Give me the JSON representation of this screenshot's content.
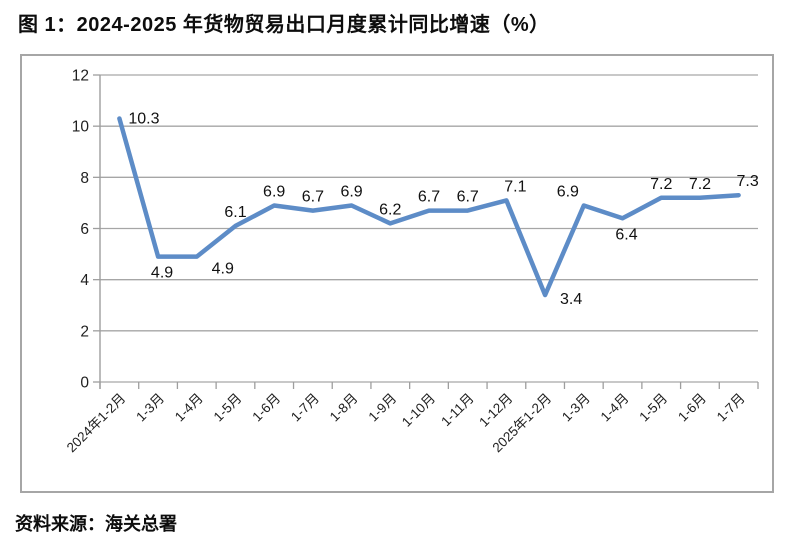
{
  "page": {
    "title": "图 1：2024-2025 年货物贸易出口月度累计同比增速（%）",
    "source_note": "资料来源：海关总署"
  },
  "chart_data": {
    "type": "line",
    "title": "图 1：2024-2025 年货物贸易出口月度累计同比增速（%）",
    "categories": [
      "2024年1-2月",
      "1-3月",
      "1-4月",
      "1-5月",
      "1-6月",
      "1-7月",
      "1-8月",
      "1-9月",
      "1-10月",
      "1-11月",
      "1-12月",
      "2025年1-2月",
      "1-3月",
      "1-4月",
      "1-5月",
      "1-6月",
      "1-7月"
    ],
    "values": [
      10.3,
      4.9,
      4.9,
      6.1,
      6.9,
      6.7,
      6.9,
      6.2,
      6.7,
      6.7,
      7.1,
      3.4,
      6.9,
      6.4,
      7.2,
      7.2,
      7.3
    ],
    "xlabel": "",
    "ylabel": "",
    "ylim": [
      0,
      12
    ],
    "yticks": [
      0,
      2,
      4,
      6,
      8,
      10,
      12
    ],
    "grid": true,
    "legend": false,
    "data_labels": true,
    "x_tick_rotation": -45,
    "label_positions": [
      "right",
      "below",
      "below-right",
      "above",
      "above",
      "above",
      "above",
      "above",
      "above",
      "above",
      "above-right",
      "right-below",
      "above-left",
      "below",
      "above",
      "above",
      "above-right"
    ],
    "colors": {
      "line": "#5D8CC7",
      "grid": "#a6a6a6",
      "axis": "#9e9e9e",
      "tick_text": "#1f1f1f",
      "data_label": "#111111",
      "frame_border": "#a6a6a6"
    }
  }
}
